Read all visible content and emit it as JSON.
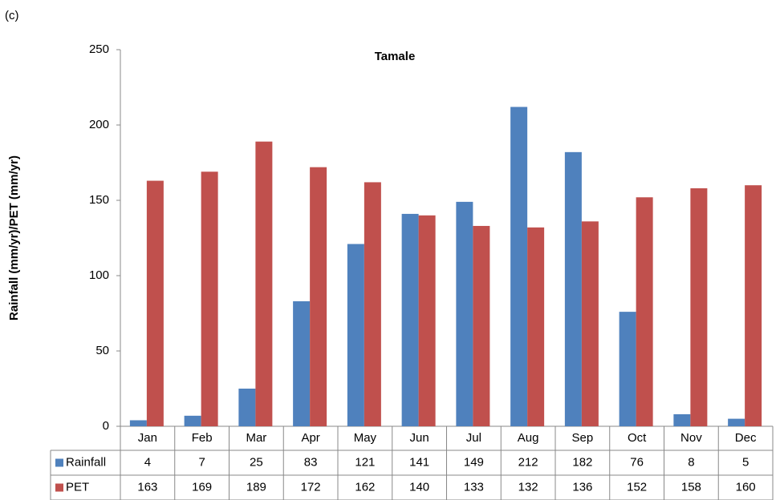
{
  "chart_data": {
    "type": "bar",
    "panel_label": "(c)",
    "title": "Tamale",
    "y_label": "Rainfall (mm/yr)/PET (mm/yr)",
    "categories": [
      "Jan",
      "Feb",
      "Mar",
      "Apr",
      "May",
      "Jun",
      "Jul",
      "Aug",
      "Sep",
      "Oct",
      "Nov",
      "Dec"
    ],
    "series": [
      {
        "name": "Rainfall",
        "color": "#4f81bd",
        "values": [
          4,
          7,
          25,
          83,
          121,
          141,
          149,
          212,
          182,
          76,
          8,
          5
        ]
      },
      {
        "name": "PET",
        "color": "#c0504d",
        "values": [
          163,
          169,
          189,
          172,
          162,
          140,
          133,
          132,
          136,
          152,
          158,
          160
        ]
      }
    ],
    "ylim": [
      0,
      250
    ],
    "yticks": [
      0,
      50,
      100,
      150,
      200,
      250
    ],
    "grid": false
  }
}
